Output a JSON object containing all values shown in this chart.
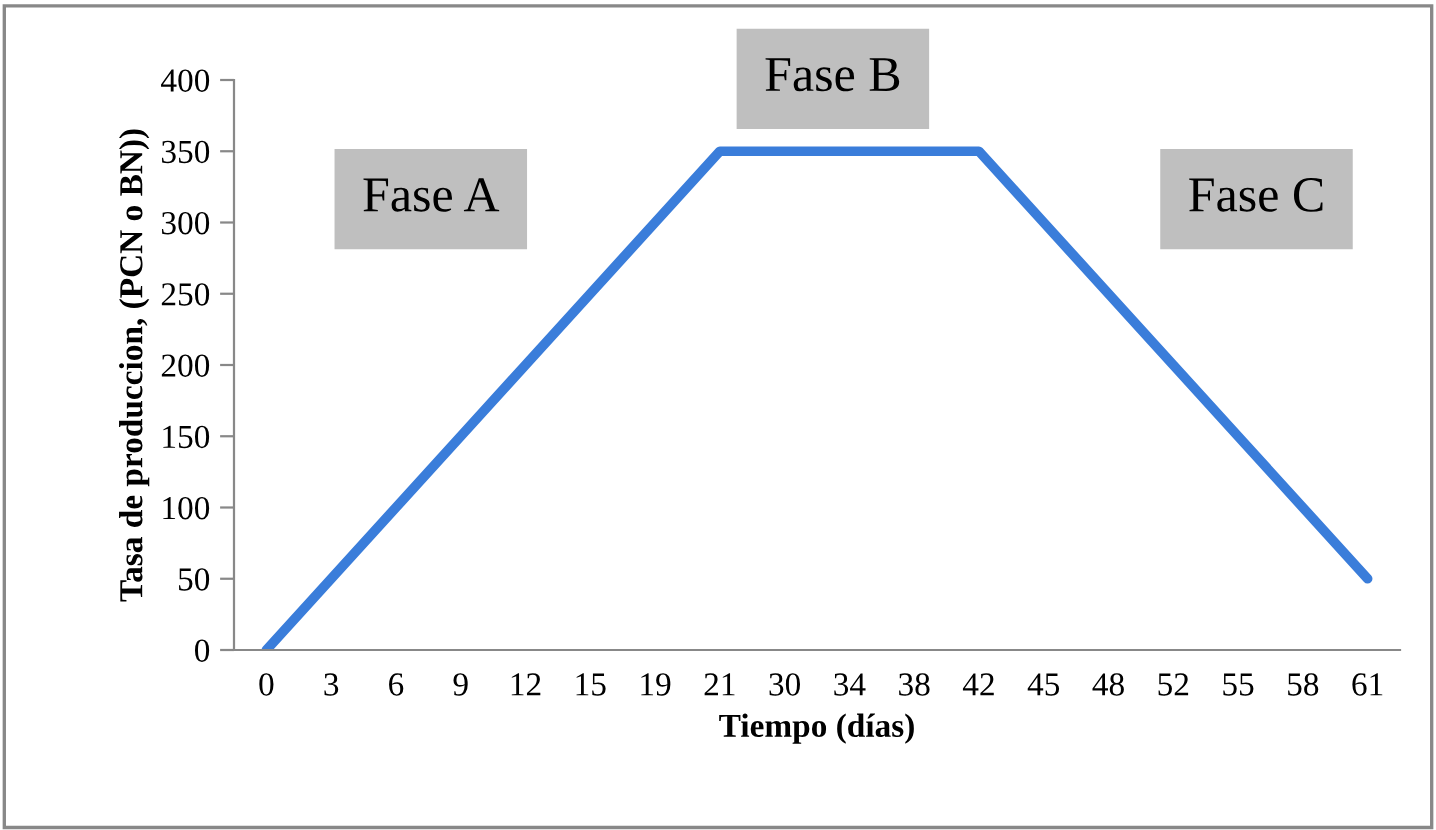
{
  "chart_data": {
    "type": "line",
    "xlabel": "Tiempo (días)",
    "ylabel": "Tasa de produccion, (PCN o BN))",
    "categories": [
      "0",
      "3",
      "6",
      "9",
      "12",
      "15",
      "19",
      "21",
      "30",
      "34",
      "38",
      "42",
      "45",
      "48",
      "52",
      "55",
      "58",
      "61"
    ],
    "series": [
      {
        "color": "#3a7dda",
        "values": [
          0,
          50,
          100,
          150,
          200,
          250,
          300,
          350,
          350,
          350,
          350,
          350,
          300,
          250,
          200,
          150,
          100,
          50
        ]
      }
    ],
    "ylim": [
      0,
      400
    ],
    "yticks": [
      0,
      50,
      100,
      150,
      200,
      250,
      300,
      350,
      400
    ],
    "grid": false,
    "legend": false,
    "marker": "none",
    "line_style": "solid",
    "annotations": [
      "Fase A",
      "Fase B",
      "Fase C"
    ]
  }
}
